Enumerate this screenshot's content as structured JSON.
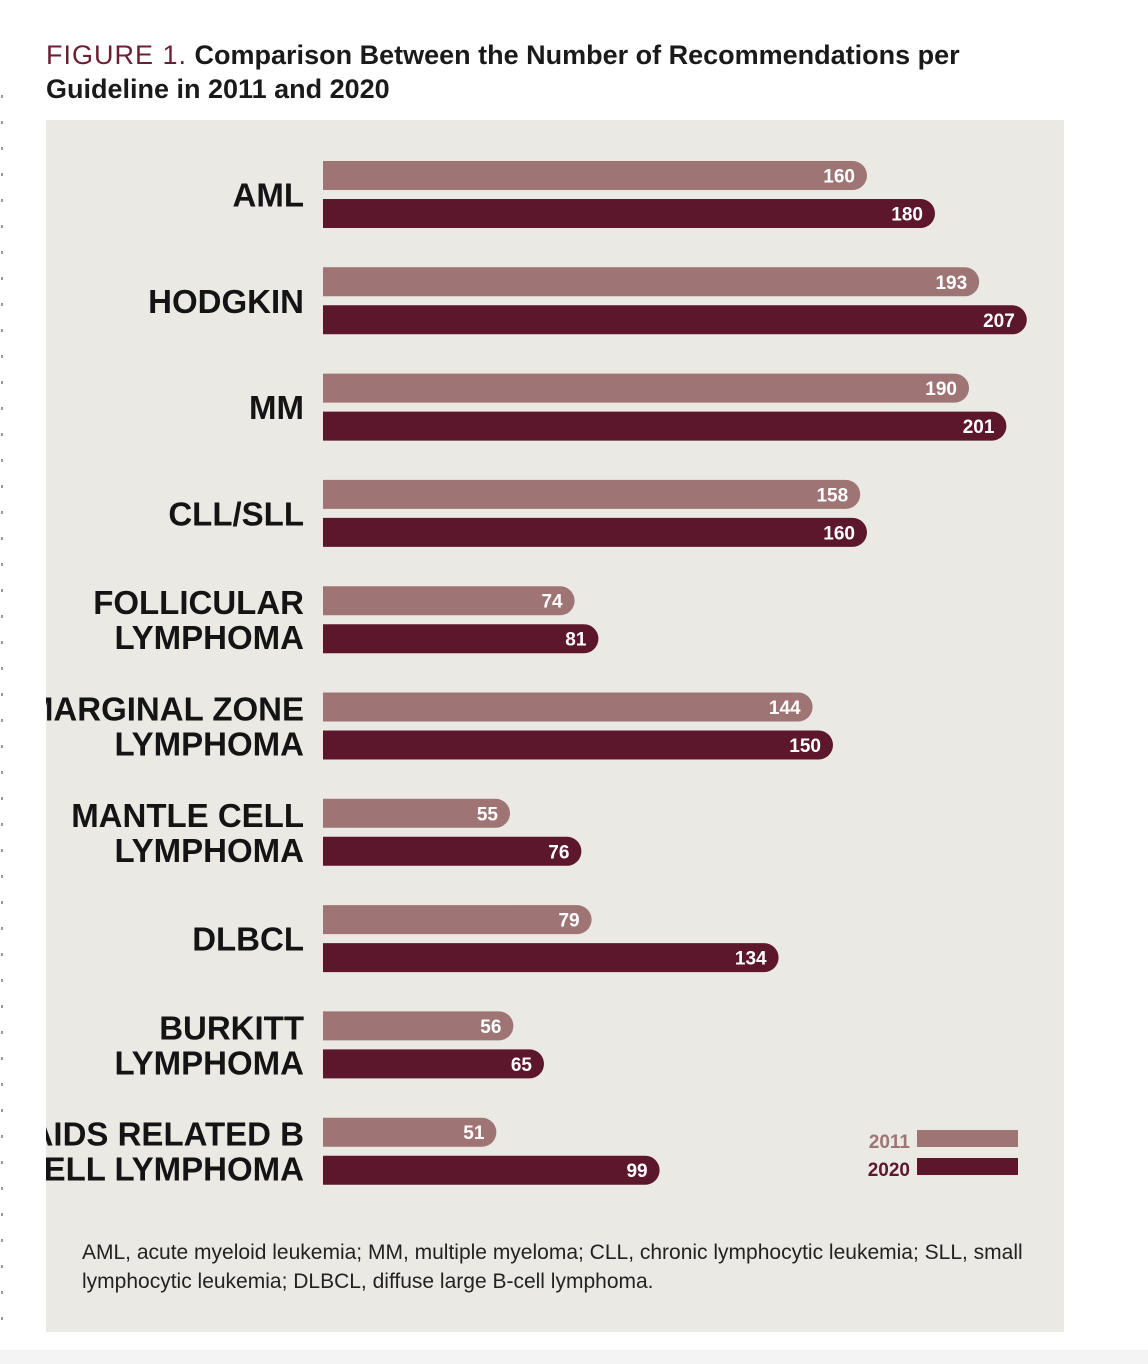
{
  "figure": {
    "label": "FIGURE 1.",
    "title": "Comparison Between the Number of Recommendations per Guideline in 2011 and 2020",
    "footnote": "AML, acute myeloid leukemia; MM, multiple myeloma; CLL, chronic lymphocytic leukemia; SLL, small lymphocytic leukemia; DLBCL, diffuse large B-cell lymphoma."
  },
  "chart_data": {
    "type": "bar",
    "orientation": "horizontal",
    "categories": [
      [
        "AML"
      ],
      [
        "HODGKIN"
      ],
      [
        "MM"
      ],
      [
        "CLL/SLL"
      ],
      [
        "FOLLICULAR",
        "LYMPHOMA"
      ],
      [
        "MARGINAL ZONE",
        "LYMPHOMA"
      ],
      [
        "MANTLE CELL",
        "LYMPHOMA"
      ],
      [
        "DLBCL"
      ],
      [
        "BURKITT",
        "LYMPHOMA"
      ],
      [
        "AIDS RELATED B",
        "CELL LYMPHOMA"
      ]
    ],
    "series": [
      {
        "name": "2011",
        "color": "#9e7474",
        "values": [
          160,
          193,
          190,
          158,
          74,
          144,
          55,
          79,
          56,
          51
        ]
      },
      {
        "name": "2020",
        "color": "#5c172c",
        "values": [
          180,
          207,
          201,
          160,
          81,
          150,
          76,
          134,
          65,
          99
        ]
      }
    ],
    "data_labels": true,
    "legend": {
      "position": "bottom-right"
    },
    "grid": false,
    "xlim": [
      0,
      207
    ]
  }
}
